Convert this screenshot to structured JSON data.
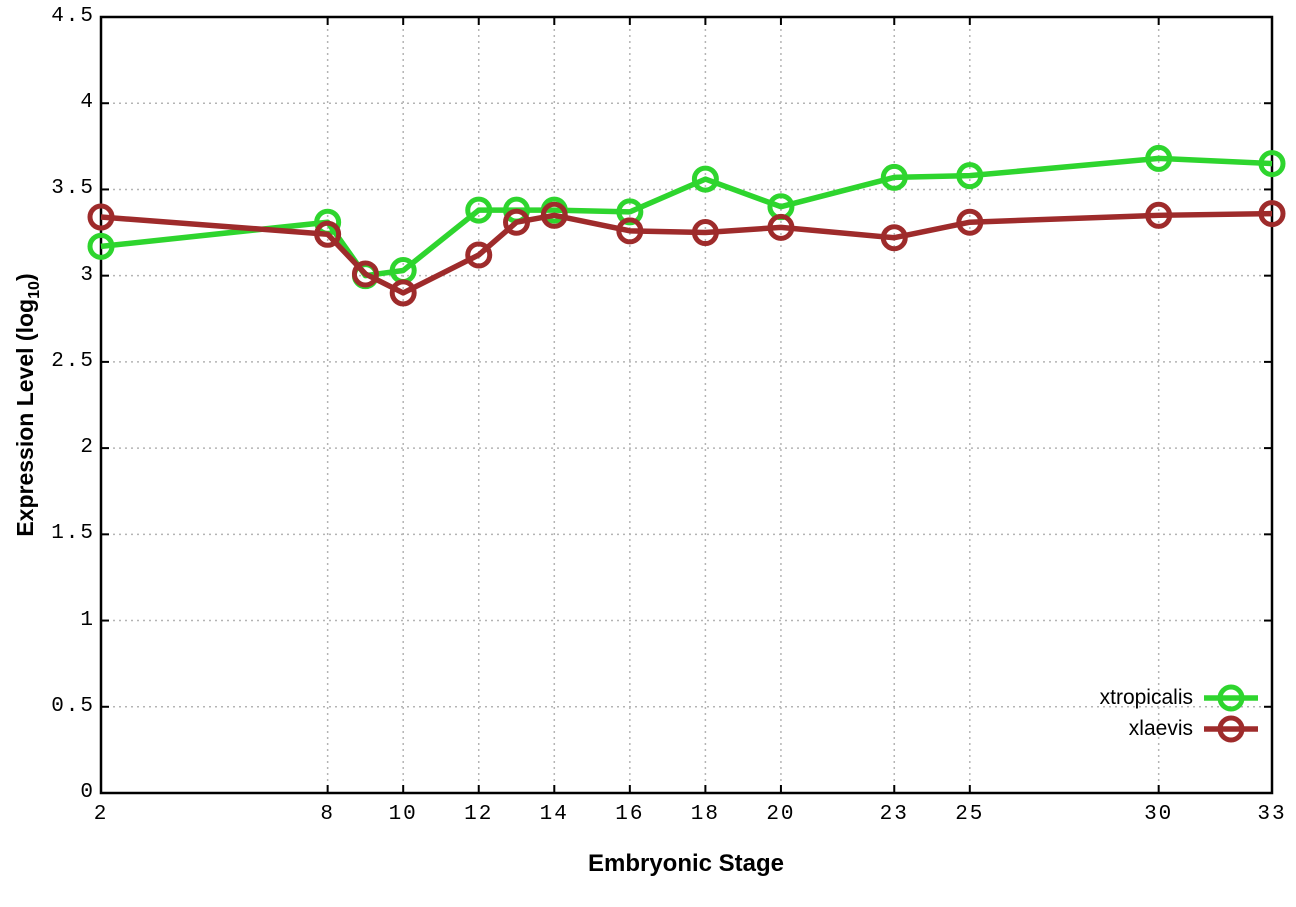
{
  "figure": {
    "background": "#ffffff",
    "frame_color": "#000000",
    "grid_color": "#b4b4b4",
    "text_color": "#000000"
  },
  "chart_data": {
    "type": "line",
    "title": "",
    "xlabel": "Embryonic Stage",
    "ylabel": "Expression Level (log10)",
    "ylabel_parts": {
      "main": "Expression Level (log",
      "sub": "10",
      "close": ")"
    },
    "xlim": [
      2,
      33
    ],
    "ylim": [
      0,
      4.5
    ],
    "grid": "dotted",
    "legend_position": "bottom-right",
    "x": [
      2,
      8,
      9,
      10,
      12,
      13,
      14,
      16,
      18,
      20,
      23,
      25,
      30,
      33
    ],
    "x_ticks": [
      2,
      8,
      10,
      12,
      14,
      16,
      18,
      20,
      23,
      25,
      30,
      33
    ],
    "x_tick_labels": [
      "2",
      "8",
      "10",
      "12",
      "14",
      "16",
      "18",
      "20",
      "23",
      "25",
      "30",
      "33"
    ],
    "y_ticks": [
      0,
      0.5,
      1,
      1.5,
      2,
      2.5,
      3,
      3.5,
      4,
      4.5
    ],
    "y_tick_labels": [
      "0",
      "0.5",
      "1",
      "1.5",
      "2",
      "2.5",
      "3",
      "3.5",
      "4",
      "4.5"
    ],
    "series": [
      {
        "name": "xtropicalis",
        "color": "#2ed52e",
        "marker": "open-circle",
        "values": [
          3.17,
          3.31,
          3.0,
          3.03,
          3.38,
          3.38,
          3.38,
          3.37,
          3.56,
          3.4,
          3.57,
          3.58,
          3.68,
          3.65
        ]
      },
      {
        "name": "xlaevis",
        "color": "#9e2b2b",
        "marker": "open-circle",
        "values": [
          3.34,
          3.24,
          3.01,
          2.9,
          3.12,
          3.31,
          3.35,
          3.26,
          3.25,
          3.28,
          3.22,
          3.31,
          3.35,
          3.36
        ]
      }
    ]
  }
}
